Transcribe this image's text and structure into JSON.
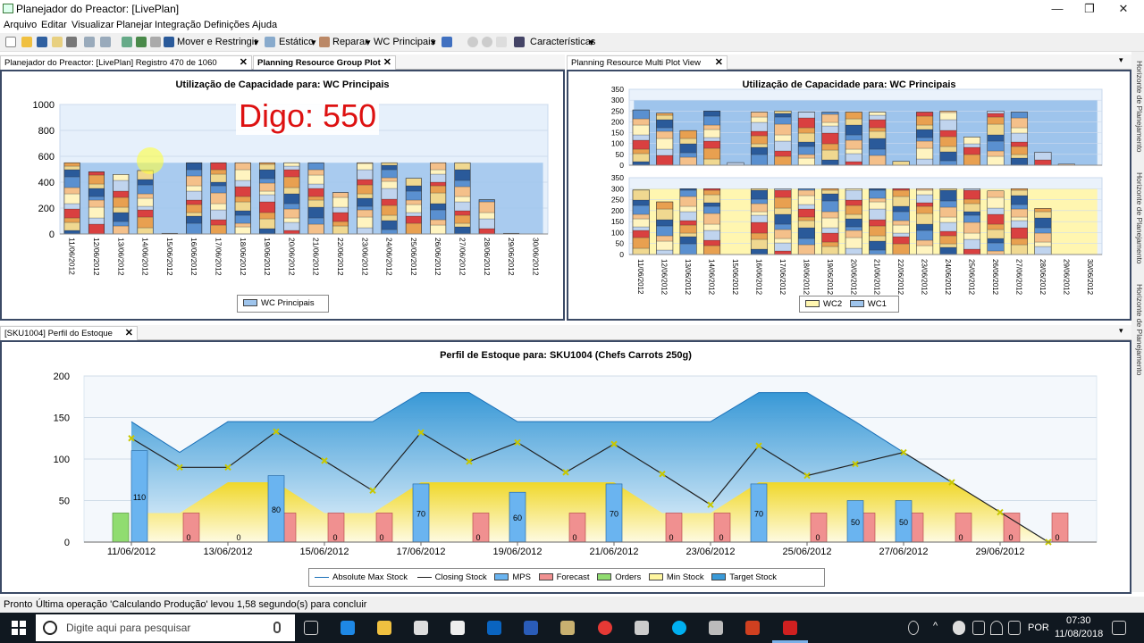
{
  "window": {
    "title": "Planejador do Preactor: [LivePlan]"
  },
  "menu": [
    "Arquivo",
    "Editar",
    "Visualizar",
    "Planejar",
    "Integração",
    "Definições",
    "Ajuda"
  ],
  "toolbar": {
    "move_label": "Mover e Restringir",
    "static_label": "Estático",
    "repair_label": "Reparar",
    "resource_label": "WC Principais",
    "features_label": "Características"
  },
  "tabs_top_left": {
    "tab1": "Planejador do Preactor: [LivePlan] Registro 470 de 1060",
    "tab2": "Planning Resource Group Plot"
  },
  "tabs_top_right": {
    "tab1": "Planning Resource Multi Plot View"
  },
  "tabs_bottom": {
    "tab1": "[SKU1004] Perfil do Estoque"
  },
  "right_strip": [
    "Horizonte de Planejamento",
    "Horizonte de Planejamento",
    "Horizonte de Planejamento"
  ],
  "overlay_text": "Digo: 550",
  "chart_left": {
    "title": "Utilização de Capacidade para: WC Principais",
    "legend": "WC Principais"
  },
  "chart_right": {
    "title": "Utilização de Capacidade para: WC Principais",
    "legend": [
      "WC2",
      "WC1"
    ]
  },
  "chart_bottom": {
    "title": "Perfil de Estoque para: SKU1004 (Chefs Carrots 250g)",
    "legend": [
      "Absolute Max Stock",
      "Closing Stock",
      "MPS",
      "Forecast",
      "Orders",
      "Min Stock",
      "Target Stock"
    ]
  },
  "colors": {
    "wc_blue": "#9ec4ec",
    "wc_yellow": "#fff6b0",
    "stack": [
      "#2a5a9a",
      "#d94040",
      "#f4c08a",
      "#f0d890",
      "#c0d4ee",
      "#5a90d0",
      "#e8a050",
      "#fff4c0"
    ]
  },
  "chart_data": [
    {
      "type": "bar",
      "title": "Utilização de Capacidade para: WC Principais",
      "categories": [
        "11/06/2012",
        "12/06/2012",
        "13/06/2012",
        "14/06/2012",
        "15/06/2012",
        "16/06/2012",
        "17/06/2012",
        "18/06/2012",
        "19/06/2012",
        "20/06/2012",
        "21/06/2012",
        "22/06/2012",
        "23/06/2012",
        "24/06/2012",
        "25/06/2012",
        "26/06/2012",
        "27/06/2012",
        "28/06/2012",
        "29/06/2012",
        "30/06/2012"
      ],
      "values": [
        550,
        480,
        460,
        490,
        5,
        550,
        550,
        550,
        550,
        550,
        550,
        320,
        550,
        550,
        430,
        550,
        550,
        265,
        5,
        0
      ],
      "ylim": [
        0,
        1000
      ],
      "yticks": [
        0,
        200,
        400,
        600,
        800,
        1000
      ],
      "capacity": 550,
      "series": [
        {
          "name": "WC Principais",
          "values": [
            550,
            480,
            460,
            490,
            5,
            550,
            550,
            550,
            550,
            550,
            550,
            320,
            550,
            550,
            430,
            550,
            550,
            265,
            5,
            0
          ]
        }
      ],
      "legend": "bottom"
    },
    {
      "type": "bar",
      "title": "Utilização de Capacidade para: WC Principais",
      "categories": [
        "11/06/2012",
        "12/06/2012",
        "13/06/2012",
        "14/06/2012",
        "15/06/2012",
        "16/06/2012",
        "17/06/2012",
        "18/06/2012",
        "19/06/2012",
        "20/06/2012",
        "21/06/2012",
        "22/06/2012",
        "23/06/2012",
        "24/06/2012",
        "25/06/2012",
        "26/06/2012",
        "27/06/2012",
        "28/06/2012",
        "29/06/2012",
        "30/06/2012"
      ],
      "ylim": [
        0,
        350
      ],
      "yticks": [
        0,
        50,
        100,
        150,
        200,
        250,
        300,
        350
      ],
      "series": [
        {
          "name": "WC1",
          "capacity": 300,
          "values": [
            255,
            240,
            160,
            250,
            12,
            245,
            250,
            245,
            245,
            245,
            245,
            18,
            245,
            250,
            130,
            250,
            245,
            60,
            5,
            0
          ]
        },
        {
          "name": "WC2",
          "capacity": 300,
          "values": [
            295,
            240,
            300,
            300,
            0,
            300,
            300,
            300,
            300,
            300,
            300,
            300,
            300,
            300,
            300,
            290,
            300,
            210,
            0,
            0
          ]
        }
      ],
      "legend": "bottom"
    },
    {
      "type": "bar",
      "title": "Perfil de Estoque para: SKU1004 (Chefs Carrots 250g)",
      "x": [
        "11/06/2012",
        "12/06/2012",
        "13/06/2012",
        "14/06/2012",
        "15/06/2012",
        "16/06/2012",
        "17/06/2012",
        "18/06/2012",
        "19/06/2012",
        "20/06/2012",
        "21/06/2012",
        "22/06/2012",
        "23/06/2012",
        "24/06/2012",
        "25/06/2012",
        "26/06/2012",
        "27/06/2012",
        "28/06/2012",
        "29/06/2012",
        "30/06/2012"
      ],
      "xticks": [
        "11/06/2012",
        "13/06/2012",
        "15/06/2012",
        "17/06/2012",
        "19/06/2012",
        "21/06/2012",
        "23/06/2012",
        "25/06/2012",
        "27/06/2012",
        "29/06/2012"
      ],
      "ylim": [
        0,
        200
      ],
      "yticks": [
        0,
        50,
        100,
        150,
        200
      ],
      "series": [
        {
          "name": "Orders",
          "values": [
            35,
            0,
            0,
            0,
            0,
            0,
            0,
            0,
            0,
            0,
            0,
            0,
            0,
            0,
            0,
            0,
            0,
            0,
            0,
            0
          ]
        },
        {
          "name": "MPS",
          "values": [
            110,
            0,
            0,
            80,
            0,
            0,
            70,
            0,
            60,
            0,
            70,
            0,
            0,
            70,
            0,
            50,
            50,
            0,
            0,
            0
          ],
          "labels": [
            "110",
            "0",
            "0",
            "80",
            "0",
            "0",
            "70",
            "0",
            "60",
            "0",
            "70",
            "0",
            "0",
            "70",
            "0",
            "50",
            "50",
            "0",
            "0",
            "0"
          ]
        },
        {
          "name": "Forecast",
          "values": [
            0,
            35,
            0,
            35,
            35,
            35,
            0,
            35,
            0,
            35,
            0,
            35,
            35,
            0,
            35,
            35,
            35,
            35,
            35,
            35
          ]
        },
        {
          "name": "Closing Stock",
          "values": [
            125,
            90,
            90,
            133,
            98,
            62,
            132,
            97,
            120,
            84,
            118,
            82,
            45,
            116,
            80,
            94,
            108,
            72,
            36,
            0
          ]
        },
        {
          "name": "Absolute Max Stock",
          "values": [
            145,
            108,
            145,
            145,
            145,
            145,
            180,
            180,
            145,
            145,
            145,
            145,
            145,
            180,
            180,
            145,
            108,
            72,
            36,
            0
          ]
        },
        {
          "name": "Target Stock",
          "values": [
            145,
            108,
            145,
            145,
            145,
            145,
            180,
            180,
            145,
            145,
            145,
            145,
            145,
            180,
            180,
            145,
            108,
            72,
            36,
            0
          ]
        },
        {
          "name": "Min Stock",
          "values": [
            35,
            35,
            72,
            72,
            35,
            35,
            72,
            72,
            72,
            72,
            72,
            35,
            35,
            72,
            72,
            72,
            72,
            72,
            36,
            0
          ]
        }
      ],
      "legend": "bottom"
    }
  ],
  "status": {
    "ready": "Pronto",
    "message": "Última operação 'Calculando Produção' levou 1,58 segundo(s) para concluir"
  },
  "taskbar": {
    "search_placeholder": "Digite aqui para pesquisar",
    "lang": "POR",
    "time": "07:30",
    "date": "11/08/2018"
  }
}
